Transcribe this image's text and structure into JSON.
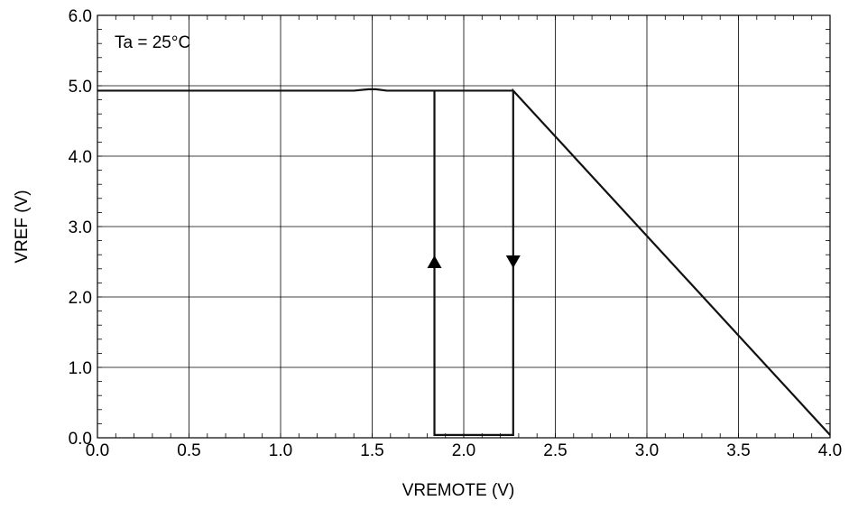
{
  "chart_data": {
    "type": "line",
    "title": "",
    "xlabel": "VREMOTE  (V)",
    "ylabel": "VREF  (V)",
    "xlim": [
      0.0,
      4.0
    ],
    "ylim": [
      0.0,
      6.0
    ],
    "x_ticks": [
      "0.0",
      "0.5",
      "1.0",
      "1.5",
      "2.0",
      "2.5",
      "3.0",
      "3.5",
      "4.0"
    ],
    "y_ticks": [
      "0.0",
      "1.0",
      "2.0",
      "3.0",
      "4.0",
      "5.0",
      "6.0"
    ],
    "grid": true,
    "annotation": "Ta = 25°C",
    "series": [
      {
        "x": [
          0.0,
          1.4,
          1.48,
          1.52,
          1.58,
          1.84,
          2.27
        ],
        "y": [
          4.93,
          4.93,
          4.95,
          4.95,
          4.93,
          4.93,
          4.93
        ]
      },
      {
        "x": [
          1.84,
          1.84,
          2.27,
          2.27,
          4.0
        ],
        "y": [
          4.93,
          0.04,
          0.04,
          4.93,
          0.04
        ]
      }
    ],
    "arrows": [
      {
        "x": 1.84,
        "y": 2.5,
        "direction": "up"
      },
      {
        "x": 2.27,
        "y": 2.5,
        "direction": "down"
      }
    ]
  }
}
